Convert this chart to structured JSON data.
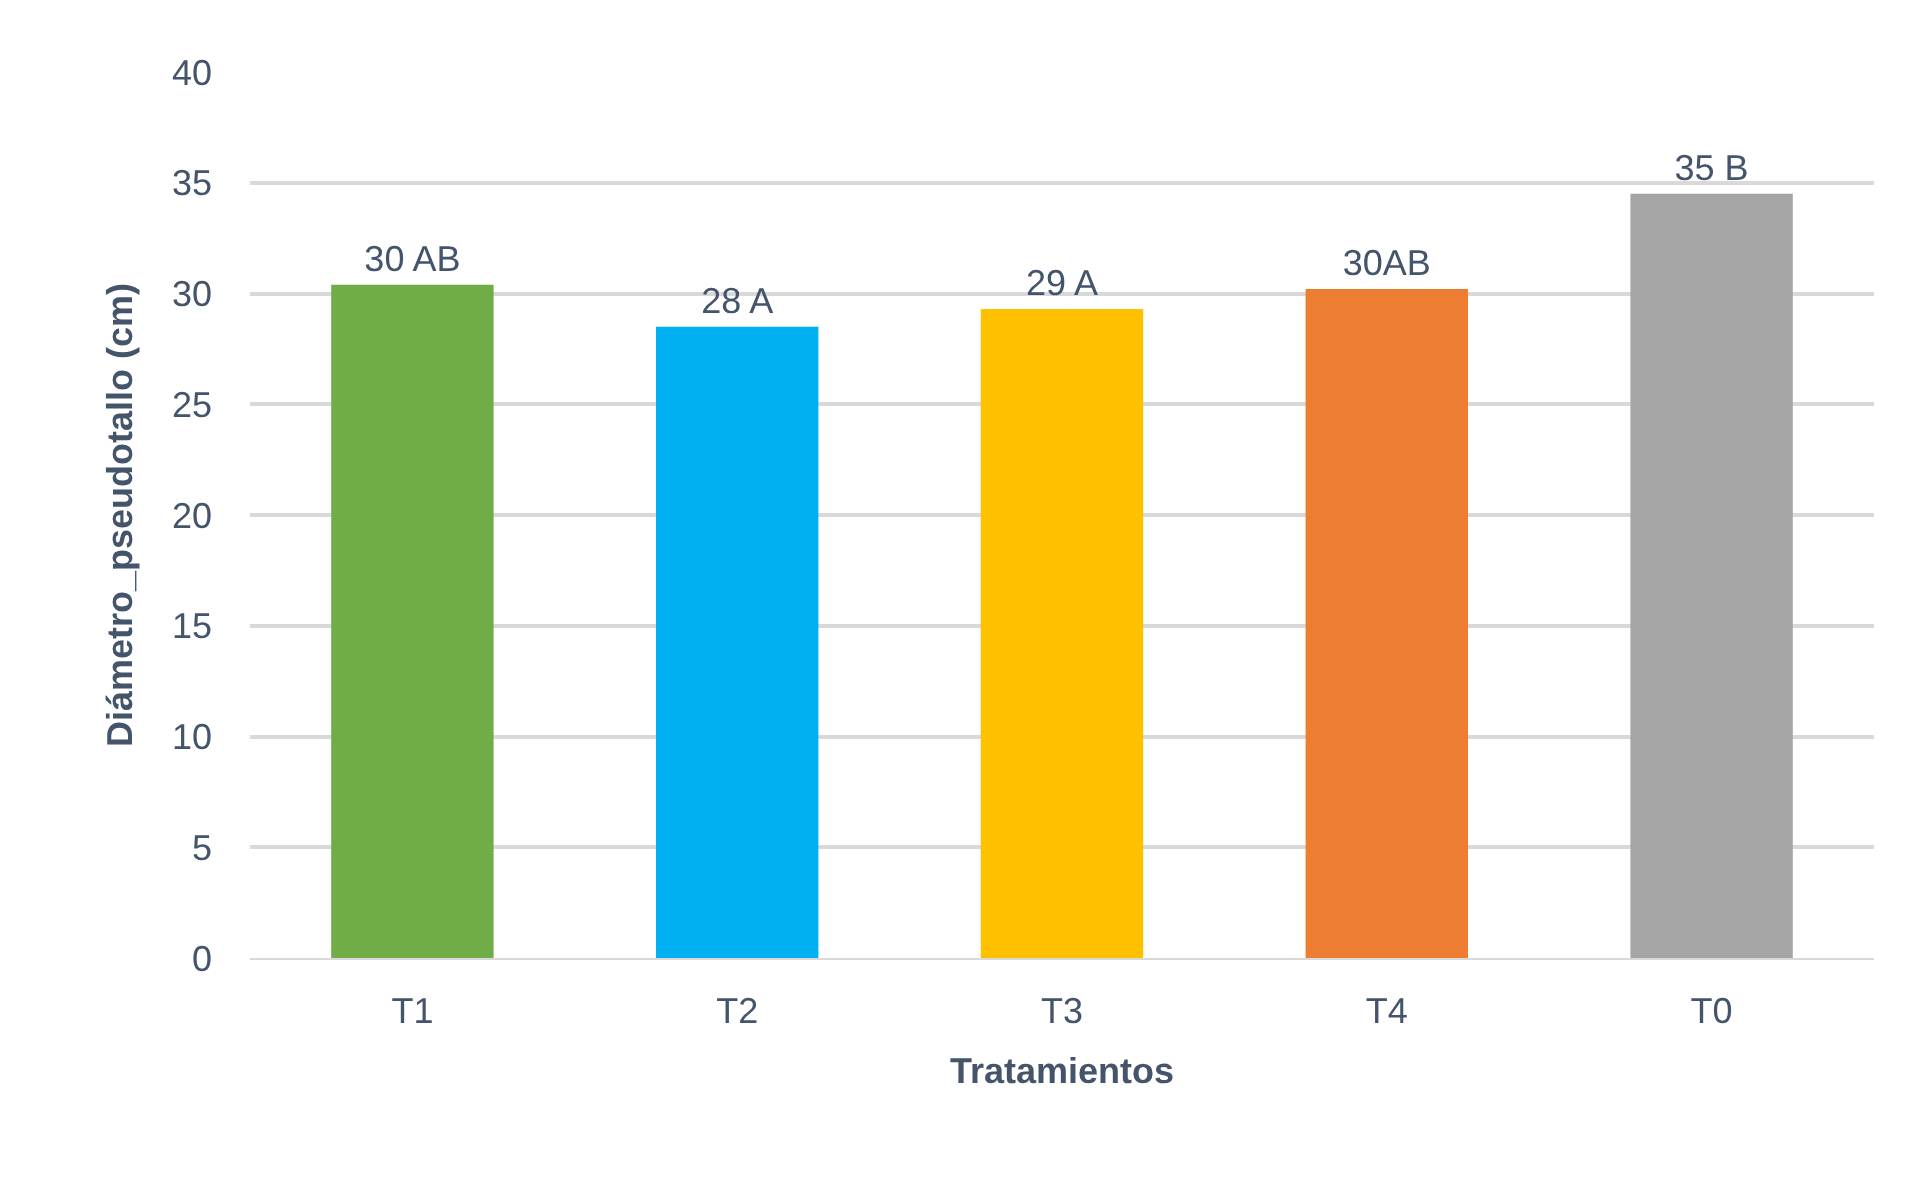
{
  "chart_data": {
    "type": "bar",
    "xlabel": "Tratamientos",
    "ylabel": "Diámetro_pseudotallo (cm)",
    "categories": [
      "T1",
      "T2",
      "T3",
      "T4",
      "T0"
    ],
    "values": [
      30.4,
      28.5,
      29.3,
      30.2,
      34.5
    ],
    "colors": [
      "#70ad47",
      "#00b0f0",
      "#ffc000",
      "#ed7d31",
      "#a5a5a5"
    ],
    "value_labels": [
      "30 AB",
      "28 A",
      "29 A",
      "30AB",
      "35 B"
    ],
    "ylim": [
      0,
      40
    ],
    "yticks": [
      0,
      5,
      10,
      15,
      20,
      25,
      30,
      35,
      40
    ],
    "grid": "y"
  }
}
